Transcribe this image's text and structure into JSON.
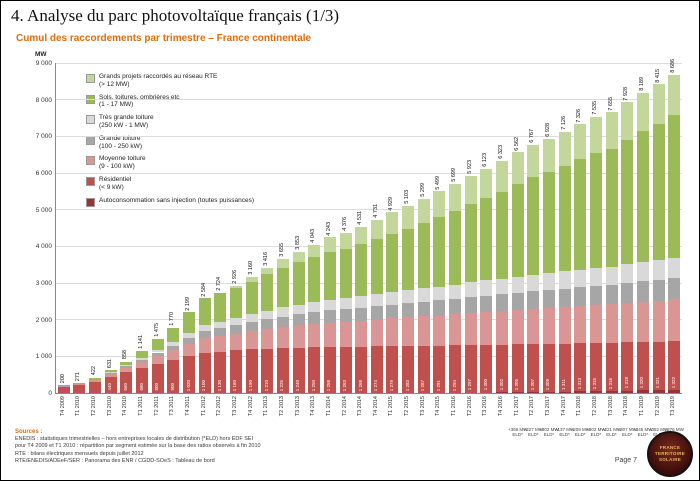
{
  "slide": {
    "title": "4. Analyse du parc photovoltaïque français (1/3)",
    "page_label": "Page 7"
  },
  "chart": {
    "subtitle": "Cumul des raccordements par trimestre – France continentale",
    "y_axis_unit": "MW"
  },
  "sources": {
    "heading": "Sources :",
    "lines": [
      "ENEDIS : statistiques trimestrielles – hors entreprises locales de distribution (*ELD) hors EDF SEI",
      "pour T4 2009 et T1 2010 : répartition par segment estimée sur la base des ratios observés à fin 2010",
      "RTE : bilans électriques mensuels depuis juillet 2012",
      "RTE/ENEDIS/ADEeF/SER : Panorama des ENR / CGDD-SOeS : Tableau de bord"
    ]
  },
  "logo": {
    "lines": [
      "France",
      "Territoire",
      "Solaire"
    ]
  },
  "chart_data": {
    "type": "bar",
    "stacked": true,
    "title": "Cumul des raccordements par trimestre – France continentale",
    "xlabel": "",
    "ylabel": "MW",
    "ylim": [
      0,
      9000
    ],
    "ytick_step": 1000,
    "grid": true,
    "legend_position": "upper-left-inside",
    "categories": [
      "T4 2009",
      "T1 2010",
      "T2 2010",
      "T3 2010",
      "T4 2010",
      "T1 2011",
      "T2 2011",
      "T3 2011",
      "T4 2011",
      "T1 2012",
      "T2 2012",
      "T3 2012",
      "T4 2012",
      "T1 2013",
      "T2 2013",
      "T3 2013",
      "T4 2013",
      "T1 2014",
      "T2 2014",
      "T3 2014",
      "T4 2014",
      "T1 2015",
      "T2 2015",
      "T3 2015",
      "T4 2015",
      "T1 2016",
      "T2 2016",
      "T3 2016",
      "T4 2016",
      "T1 2017",
      "T2 2017",
      "T3 2017",
      "T4 2017",
      "T1 2018",
      "T2 2018",
      "T3 2018",
      "T4 2018",
      "T1 2019",
      "T2 2019",
      "T3 2019"
    ],
    "totals": [
      200,
      271,
      422,
      631,
      858,
      1141,
      1475,
      1770,
      2199,
      2584,
      2724,
      2926,
      3160,
      3416,
      3655,
      3853,
      4043,
      4243,
      4376,
      4531,
      4731,
      4929,
      5103,
      5299,
      5499,
      5699,
      5923,
      6123,
      6323,
      6562,
      6767,
      6928,
      7126,
      7326,
      7535,
      7655,
      7928,
      8189,
      8415,
      8686
    ],
    "series": [
      {
        "name": "Autoconsommation sans injection (toutes puissances)",
        "color": "#943634",
        "values": [
          0,
          0,
          0,
          0,
          0,
          0,
          0,
          0,
          0,
          0,
          0,
          0,
          0,
          0,
          0,
          0,
          0,
          0,
          0,
          0,
          0,
          0,
          0,
          0,
          0,
          5,
          8,
          12,
          16,
          20,
          25,
          30,
          36,
          42,
          48,
          54,
          62,
          70,
          78,
          87
        ]
      },
      {
        "name": "Résidentiel (< 9 kW)",
        "color": "#c0504d",
        "values": [
          160,
          210,
          310,
          440,
          560,
          680,
          800,
          900,
          1020,
          1100,
          1130,
          1160,
          1190,
          1210,
          1225,
          1240,
          1250,
          1258,
          1263,
          1268,
          1274,
          1279,
          1283,
          1287,
          1291,
          1294,
          1297,
          1300,
          1302,
          1305,
          1307,
          1309,
          1311,
          1313,
          1315,
          1316,
          1318,
          1320,
          1321,
          1322
        ]
      },
      {
        "name": "Moyenne toiture (9 - 100 kW)",
        "color": "#d99694",
        "values": [
          25,
          35,
          60,
          90,
          120,
          160,
          210,
          260,
          330,
          400,
          430,
          460,
          500,
          540,
          575,
          605,
          635,
          665,
          685,
          705,
          730,
          755,
          778,
          800,
          822,
          845,
          870,
          892,
          912,
          935,
          955,
          972,
          992,
          1012,
          1033,
          1045,
          1072,
          1098,
          1120,
          1147
        ]
      },
      {
        "name": "Grande toiture (100 - 250 kW)",
        "color": "#a6a6a6",
        "values": [
          8,
          12,
          20,
          35,
          50,
          70,
          95,
          120,
          155,
          190,
          205,
          225,
          245,
          265,
          285,
          300,
          315,
          330,
          340,
          352,
          365,
          378,
          390,
          402,
          414,
          426,
          440,
          452,
          463,
          476,
          487,
          496,
          507,
          518,
          529,
          535,
          549,
          562,
          574,
          588
        ]
      },
      {
        "name": "Très grande toiture (250 kW - 1 MW)",
        "color": "#d9d9d9",
        "values": [
          3,
          5,
          10,
          20,
          33,
          50,
          75,
          100,
          130,
          160,
          175,
          190,
          210,
          230,
          250,
          265,
          280,
          295,
          305,
          315,
          328,
          340,
          352,
          364,
          376,
          388,
          402,
          414,
          425,
          438,
          449,
          458,
          469,
          480,
          491,
          497,
          511,
          524,
          536,
          550
        ]
      },
      {
        "name": "Sols, toitures, ombrières etc (1 - 17 MW)",
        "color": "#9bbb59",
        "values": [
          4,
          9,
          22,
          46,
          95,
          181,
          295,
          390,
          564,
          734,
          784,
          831,
          895,
          991,
          1080,
          1153,
          1223,
          1295,
          1343,
          1411,
          1504,
          1597,
          1680,
          1786,
          1896,
          2006,
          2136,
          2253,
          2375,
          2528,
          2659,
          2758,
          2881,
          3006,
          3139,
          3213,
          3391,
          3560,
          3706,
          3882
        ]
      },
      {
        "name": "Grands projets raccordés au réseau RTE (> 12 MW)",
        "color": "#c3d69b",
        "values": [
          0,
          0,
          0,
          0,
          0,
          0,
          0,
          0,
          0,
          0,
          0,
          60,
          120,
          180,
          240,
          290,
          340,
          400,
          440,
          480,
          530,
          580,
          620,
          660,
          700,
          735,
          770,
          800,
          830,
          860,
          885,
          905,
          930,
          955,
          980,
          995,
          1025,
          1055,
          1080,
          1110
        ]
      }
    ],
    "legend": [
      {
        "lines": [
          "Grands projets raccordés au réseau RTE",
          "(> 12 MW)"
        ],
        "color": "#c3d69b"
      },
      {
        "lines": [
          "Sols, toitures, ombrières etc",
          "(1 - 17 MW)"
        ],
        "color": "#9bbb59"
      },
      {
        "lines": [
          "Très grande toiture",
          "(250 kW - 1 MW)"
        ],
        "color": "#d9d9d9"
      },
      {
        "lines": [
          "Grande toiture",
          "(100 - 250 kW)"
        ],
        "color": "#a6a6a6"
      },
      {
        "lines": [
          "Moyenne toiture",
          "(9 - 100 kW)"
        ],
        "color": "#d99694"
      },
      {
        "lines": [
          "Résidentiel",
          "(< 9 kW)"
        ],
        "color": "#c0504d"
      },
      {
        "lines": [
          "Autoconsommation sans injection (toutes puissances)"
        ],
        "color": "#943634"
      }
    ],
    "quarter_annotations": [
      {
        "index": 29,
        "lines": [
          "+369 MW",
          "ELD*"
        ]
      },
      {
        "index": 30,
        "lines": [
          "+227 MW",
          "ELD*"
        ]
      },
      {
        "index": 31,
        "lines": [
          "+302 MW",
          "ELD*"
        ]
      },
      {
        "index": 32,
        "lines": [
          "+137 MW",
          "ELD*"
        ]
      },
      {
        "index": 33,
        "lines": [
          "+209 MW",
          "ELD*"
        ]
      },
      {
        "index": 34,
        "lines": [
          "+302 MW",
          "ELD*"
        ]
      },
      {
        "index": 35,
        "lines": [
          "+221 MW",
          "ELD*"
        ]
      },
      {
        "index": 36,
        "lines": [
          "+307 MW",
          "ELD*"
        ]
      },
      {
        "index": 37,
        "lines": [
          "+345 MW",
          "ELD*"
        ]
      },
      {
        "index": 38,
        "lines": [
          "+382 MW",
          "ELD*"
        ]
      },
      {
        "index": 39,
        "lines": [
          "+376 MW",
          "ELD*"
        ]
      }
    ]
  }
}
